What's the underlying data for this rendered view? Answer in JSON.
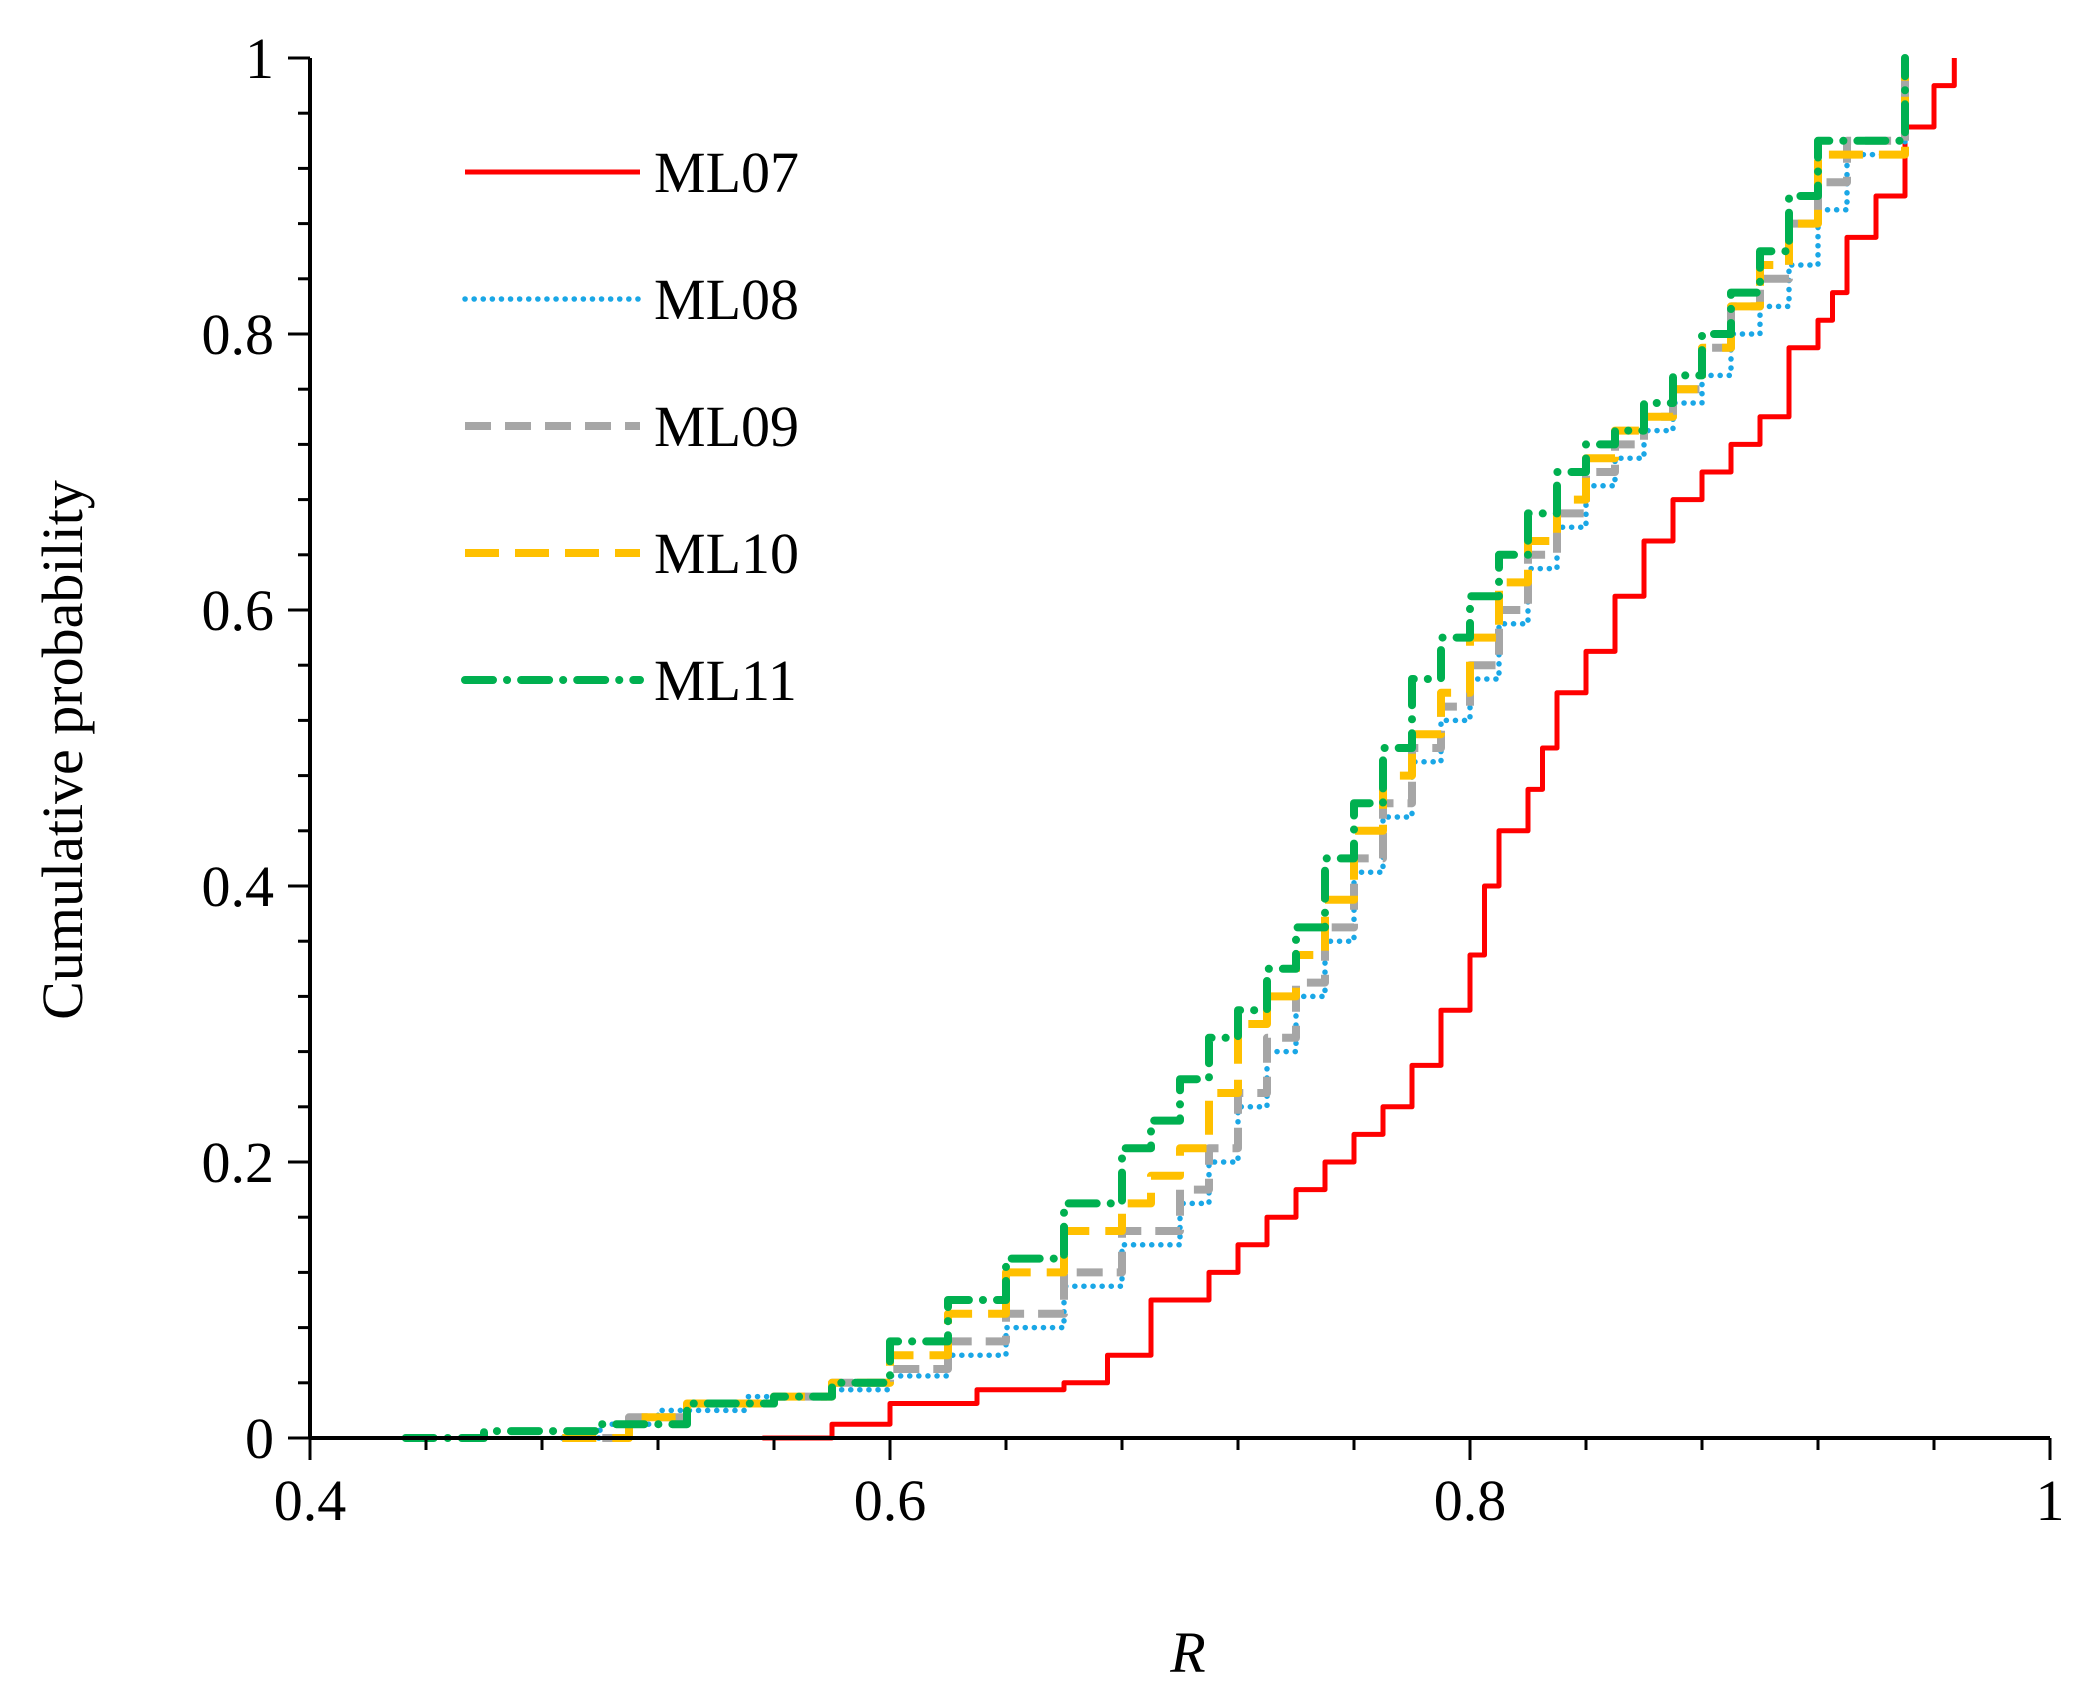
{
  "chart_data": {
    "type": "line",
    "title": "",
    "xlabel": "R",
    "ylabel": "Cumulative probability",
    "xlim": [
      0.4,
      1.0
    ],
    "ylim": [
      0,
      1.0
    ],
    "x_ticks": [
      "0.4",
      "0.6",
      "0.8",
      "1"
    ],
    "y_ticks": [
      "0",
      "0.2",
      "0.4",
      "0.6",
      "0.8",
      "1"
    ],
    "legend_position": "top-left",
    "grid": false,
    "series": [
      {
        "name": "ML07",
        "color": "#ff0000",
        "style": "solid",
        "x": [
          0.556,
          0.58,
          0.6,
          0.63,
          0.66,
          0.675,
          0.69,
          0.71,
          0.72,
          0.73,
          0.74,
          0.75,
          0.76,
          0.77,
          0.78,
          0.79,
          0.8,
          0.805,
          0.81,
          0.82,
          0.825,
          0.83,
          0.84,
          0.85,
          0.86,
          0.87,
          0.88,
          0.89,
          0.9,
          0.91,
          0.92,
          0.925,
          0.93,
          0.94,
          0.95,
          0.96,
          0.967
        ],
        "y": [
          0.0,
          0.01,
          0.025,
          0.035,
          0.04,
          0.06,
          0.1,
          0.12,
          0.14,
          0.16,
          0.18,
          0.2,
          0.22,
          0.24,
          0.27,
          0.31,
          0.35,
          0.4,
          0.44,
          0.47,
          0.5,
          0.54,
          0.57,
          0.61,
          0.65,
          0.68,
          0.7,
          0.72,
          0.74,
          0.79,
          0.81,
          0.83,
          0.87,
          0.9,
          0.95,
          0.98,
          1.0
        ]
      },
      {
        "name": "ML08",
        "color": "#1aa7e6",
        "style": "dotted",
        "x": [
          0.487,
          0.5,
          0.52,
          0.55,
          0.58,
          0.6,
          0.62,
          0.64,
          0.66,
          0.68,
          0.7,
          0.71,
          0.72,
          0.73,
          0.74,
          0.75,
          0.76,
          0.77,
          0.78,
          0.79,
          0.8,
          0.81,
          0.82,
          0.83,
          0.84,
          0.85,
          0.86,
          0.87,
          0.88,
          0.89,
          0.9,
          0.91,
          0.92,
          0.93,
          0.95
        ],
        "y": [
          0.0,
          0.01,
          0.02,
          0.03,
          0.035,
          0.045,
          0.06,
          0.08,
          0.11,
          0.14,
          0.17,
          0.2,
          0.24,
          0.28,
          0.32,
          0.36,
          0.41,
          0.45,
          0.49,
          0.52,
          0.55,
          0.59,
          0.63,
          0.66,
          0.69,
          0.71,
          0.73,
          0.75,
          0.77,
          0.8,
          0.82,
          0.85,
          0.89,
          0.93,
          1.0
        ]
      },
      {
        "name": "ML09",
        "color": "#a6a6a6",
        "style": "dashed",
        "x": [
          0.487,
          0.51,
          0.53,
          0.56,
          0.58,
          0.6,
          0.62,
          0.64,
          0.66,
          0.68,
          0.7,
          0.71,
          0.72,
          0.73,
          0.74,
          0.75,
          0.76,
          0.77,
          0.78,
          0.79,
          0.8,
          0.81,
          0.82,
          0.83,
          0.84,
          0.85,
          0.86,
          0.87,
          0.88,
          0.89,
          0.9,
          0.91,
          0.92,
          0.93,
          0.95
        ],
        "y": [
          0.0,
          0.015,
          0.025,
          0.03,
          0.04,
          0.05,
          0.07,
          0.09,
          0.12,
          0.15,
          0.18,
          0.21,
          0.25,
          0.29,
          0.33,
          0.37,
          0.42,
          0.46,
          0.5,
          0.53,
          0.56,
          0.6,
          0.64,
          0.67,
          0.7,
          0.72,
          0.74,
          0.76,
          0.79,
          0.82,
          0.84,
          0.88,
          0.91,
          0.94,
          1.0
        ]
      },
      {
        "name": "ML10",
        "color": "#ffc000",
        "style": "long-dash",
        "x": [
          0.487,
          0.51,
          0.53,
          0.56,
          0.58,
          0.6,
          0.62,
          0.64,
          0.66,
          0.68,
          0.69,
          0.7,
          0.71,
          0.72,
          0.73,
          0.74,
          0.75,
          0.76,
          0.77,
          0.78,
          0.79,
          0.8,
          0.81,
          0.82,
          0.83,
          0.84,
          0.85,
          0.86,
          0.87,
          0.88,
          0.89,
          0.9,
          0.91,
          0.92,
          0.95
        ],
        "y": [
          0.0,
          0.015,
          0.025,
          0.03,
          0.04,
          0.06,
          0.09,
          0.12,
          0.15,
          0.17,
          0.19,
          0.21,
          0.25,
          0.3,
          0.32,
          0.35,
          0.39,
          0.44,
          0.48,
          0.51,
          0.54,
          0.58,
          0.62,
          0.65,
          0.68,
          0.71,
          0.73,
          0.74,
          0.76,
          0.79,
          0.82,
          0.85,
          0.88,
          0.93,
          1.0
        ]
      },
      {
        "name": "ML11",
        "color": "#00b050",
        "style": "dash-dot",
        "x": [
          0.433,
          0.46,
          0.5,
          0.53,
          0.56,
          0.58,
          0.6,
          0.62,
          0.64,
          0.66,
          0.68,
          0.69,
          0.7,
          0.71,
          0.72,
          0.73,
          0.74,
          0.75,
          0.76,
          0.77,
          0.78,
          0.79,
          0.8,
          0.81,
          0.82,
          0.83,
          0.84,
          0.85,
          0.86,
          0.87,
          0.88,
          0.89,
          0.9,
          0.91,
          0.92,
          0.95
        ],
        "y": [
          0.0,
          0.005,
          0.01,
          0.025,
          0.03,
          0.04,
          0.07,
          0.1,
          0.13,
          0.17,
          0.21,
          0.23,
          0.26,
          0.29,
          0.31,
          0.34,
          0.37,
          0.42,
          0.46,
          0.5,
          0.55,
          0.58,
          0.61,
          0.64,
          0.67,
          0.7,
          0.72,
          0.73,
          0.75,
          0.77,
          0.8,
          0.83,
          0.86,
          0.9,
          0.94,
          1.0
        ]
      }
    ]
  }
}
